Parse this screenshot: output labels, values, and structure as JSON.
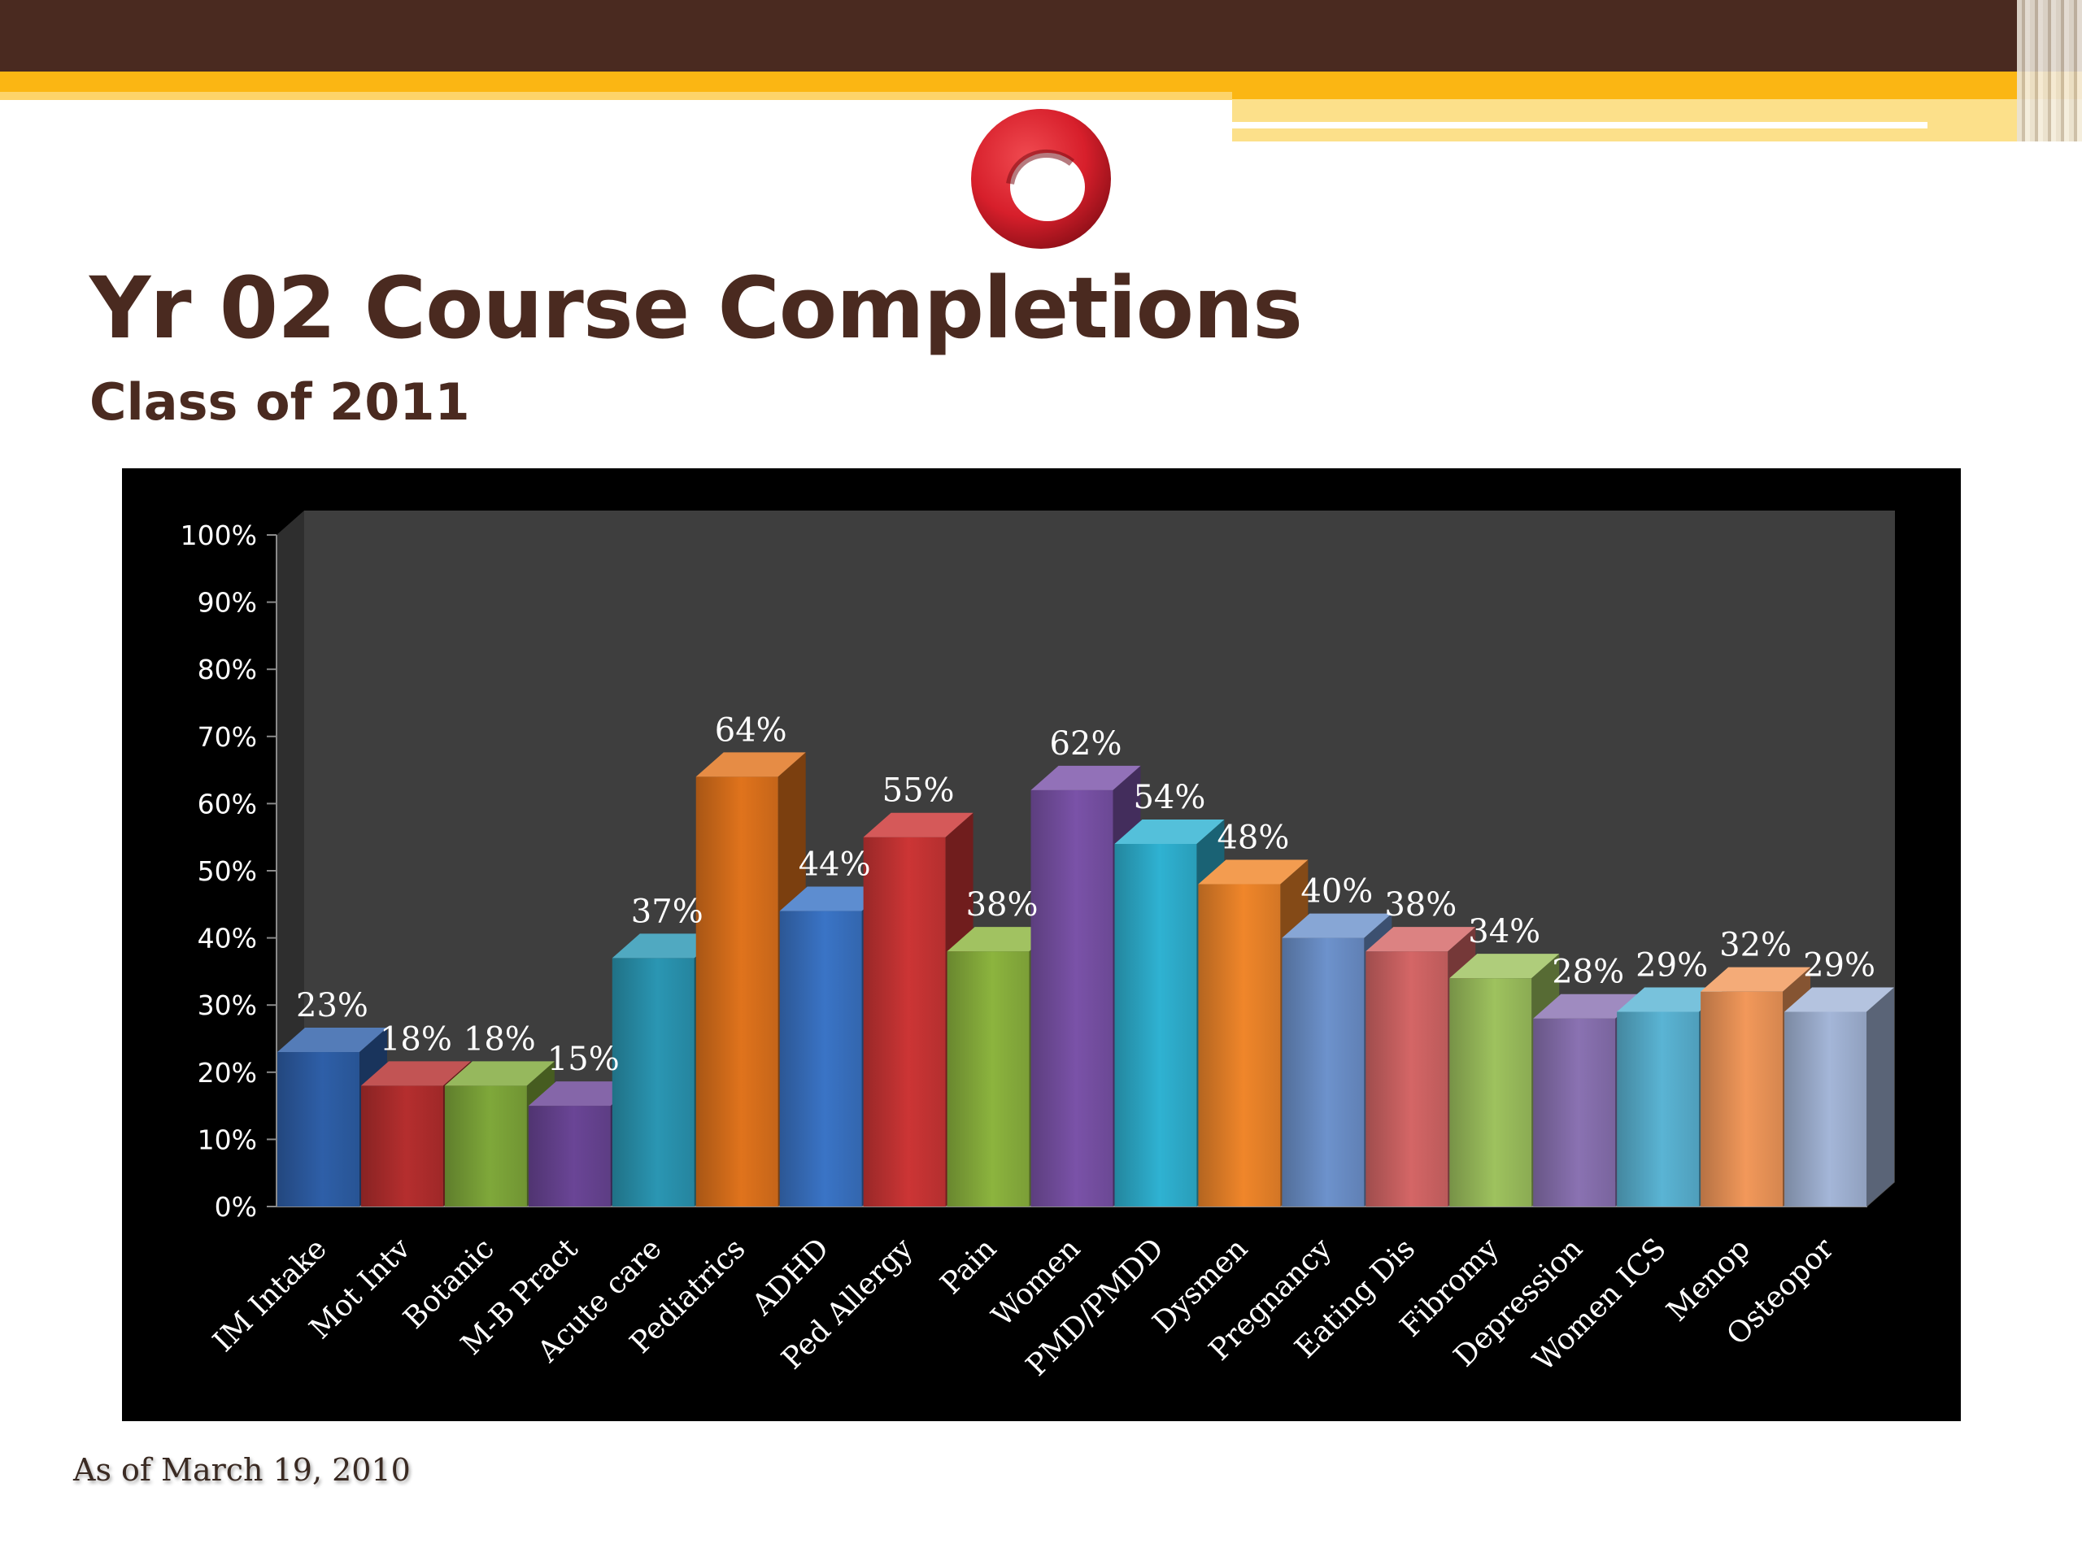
{
  "slide": {
    "title": "Yr 02 Course Completions",
    "subtitle": "Class of 2011",
    "footnote": "As of March 19, 2010"
  },
  "colors": {
    "brand_brown": "#4a2a20",
    "brand_gold": "#fbb613",
    "logo_red": "#d71f2b",
    "chart_bg": "#000000",
    "plot_wall": "#3e3e3e"
  },
  "chart_data": {
    "type": "bar",
    "style": "3d-columns",
    "categories": [
      "IM Intake",
      "Mot Intv",
      "Botanic",
      "M-B Pract",
      "Acute care",
      "Pediatrics",
      "ADHD",
      "Ped Allergy",
      "Pain",
      "Women",
      "PMD/PMDD",
      "Dysmen",
      "Pregnancy",
      "Eating Dis",
      "Fibromy",
      "Depression",
      "Women ICS",
      "Menop",
      "Osteopor"
    ],
    "values": [
      23,
      18,
      18,
      15,
      37,
      64,
      44,
      55,
      38,
      62,
      54,
      48,
      40,
      38,
      34,
      28,
      29,
      32,
      29
    ],
    "data_labels": [
      "23%",
      "18%",
      "18%",
      "15%",
      "37%",
      "64%",
      "44%",
      "55%",
      "38%",
      "62%",
      "54%",
      "48%",
      "40%",
      "38%",
      "34%",
      "28%",
      "29%",
      "32%",
      "29%"
    ],
    "bar_colors": [
      "#2e5fa8",
      "#b52e2e",
      "#7fa83a",
      "#6a4596",
      "#2a96b3",
      "#e0731c",
      "#3a74c6",
      "#cc3535",
      "#8cb43e",
      "#7a52a8",
      "#2fb2d2",
      "#f0862a",
      "#6d92cc",
      "#d46666",
      "#9ec25e",
      "#8a72b2",
      "#5ab4d4",
      "#f2985a",
      "#a4b6d8"
    ],
    "y_ticks": [
      "0%",
      "10%",
      "20%",
      "30%",
      "40%",
      "50%",
      "60%",
      "70%",
      "80%",
      "90%",
      "100%"
    ],
    "ylim": [
      0,
      100
    ],
    "xlabel": "",
    "ylabel": "",
    "grid": false,
    "legend": "none"
  }
}
